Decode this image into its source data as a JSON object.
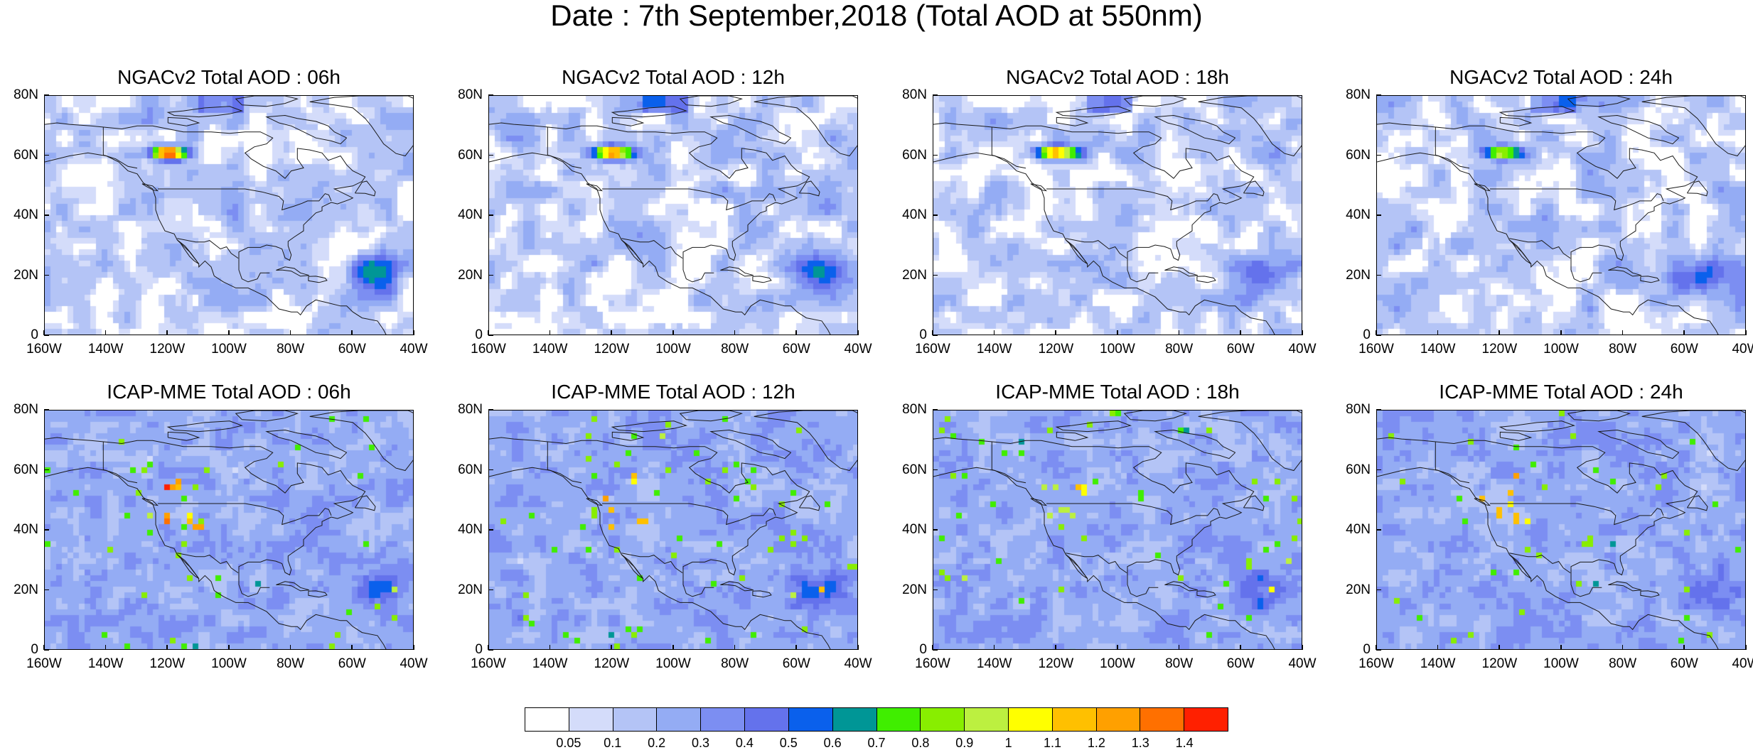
{
  "title": "Date : 7th September,2018 (Total AOD at 550nm)",
  "x_tick_labels": [
    "160W",
    "140W",
    "120W",
    "100W",
    "80W",
    "60W",
    "40W"
  ],
  "y_tick_labels": [
    "0",
    "20N",
    "40N",
    "60N",
    "80N"
  ],
  "extent": {
    "lon_min": -160,
    "lon_max": -40,
    "lat_min": 0,
    "lat_max": 80
  },
  "panels": [
    {
      "title": "NGACv2 Total AOD : 06h",
      "model": "NGACv2",
      "hour": 6
    },
    {
      "title": "NGACv2 Total AOD : 12h",
      "model": "NGACv2",
      "hour": 12
    },
    {
      "title": "NGACv2 Total AOD : 18h",
      "model": "NGACv2",
      "hour": 18
    },
    {
      "title": "NGACv2 Total AOD : 24h",
      "model": "NGACv2",
      "hour": 24
    },
    {
      "title": "ICAP-MME Total AOD : 06h",
      "model": "ICAP-MME",
      "hour": 6
    },
    {
      "title": "ICAP-MME Total AOD : 12h",
      "model": "ICAP-MME",
      "hour": 12
    },
    {
      "title": "ICAP-MME Total AOD : 18h",
      "model": "ICAP-MME",
      "hour": 18
    },
    {
      "title": "ICAP-MME Total AOD : 24h",
      "model": "ICAP-MME",
      "hour": 24
    }
  ],
  "colorbar": {
    "labels": [
      "0.05",
      "0.1",
      "0.2",
      "0.3",
      "0.4",
      "0.5",
      "0.6",
      "0.7",
      "0.8",
      "0.9",
      "1",
      "1.1",
      "1.2",
      "1.3",
      "1.4"
    ],
    "colors": [
      "#ffffff",
      "#d4dcfa",
      "#b4c4f6",
      "#94acf4",
      "#7c8ef2",
      "#6472ec",
      "#0a60ec",
      "#009696",
      "#40ee00",
      "#88ee00",
      "#bcf040",
      "#ffff00",
      "#ffc000",
      "#ffa000",
      "#ff7000",
      "#ff2000"
    ]
  },
  "dust_plume": {
    "lon": -53,
    "lat": 20
  },
  "fire_hotspot": {
    "lon": -120,
    "lat": 61
  }
}
